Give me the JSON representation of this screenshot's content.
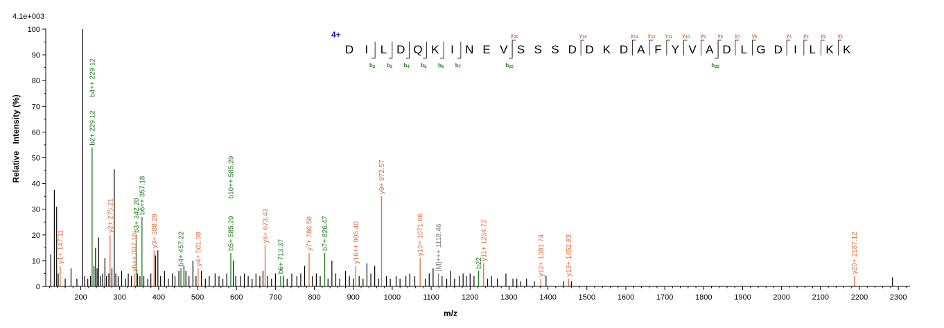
{
  "chart_data": {
    "type": "bar",
    "title": "",
    "scale_label": "4.1e+003",
    "xlabel": "m/z",
    "ylabel": "Relative   Intensity (%)",
    "xlim": [
      110,
      2330
    ],
    "ylim": [
      0,
      100
    ],
    "xticks": [
      200,
      300,
      400,
      500,
      600,
      700,
      800,
      900,
      1000,
      1100,
      1200,
      1300,
      1400,
      1500,
      1600,
      1700,
      1800,
      1900,
      2000,
      2100,
      2200,
      2300
    ],
    "yticks": [
      0,
      10,
      20,
      30,
      40,
      50,
      60,
      70,
      80,
      90,
      100
    ],
    "colors": {
      "y_ion": "#e06c3c",
      "b_ion": "#1f7a1f",
      "other": "#000000",
      "charge": "#1a1ab8",
      "precursor": "#7a7a7a"
    },
    "annotated_peaks": [
      {
        "mz": 147.11,
        "intensity": 8,
        "label": "y1+ 147.11",
        "ion": "y"
      },
      {
        "mz": 229.12,
        "intensity": 54,
        "label": "b2+ 229.12",
        "ion": "b"
      },
      {
        "mz": 229.12,
        "intensity": 54,
        "label": "b4++ 229.12",
        "ion": "b",
        "stack": 1
      },
      {
        "mz": 275.21,
        "intensity": 20,
        "label": "y2+ 275.21",
        "ion": "y"
      },
      {
        "mz": 337.16,
        "intensity": 5,
        "label": "y6++ 337.16",
        "ion": "y"
      },
      {
        "mz": 342.2,
        "intensity": 20,
        "label": "b3+ 342.20",
        "ion": "b"
      },
      {
        "mz": 357.18,
        "intensity": 27,
        "label": "b6++ 357.18",
        "ion": "b"
      },
      {
        "mz": 388.29,
        "intensity": 14,
        "label": "y3+ 388.29",
        "ion": "y"
      },
      {
        "mz": 457.22,
        "intensity": 7,
        "label": "b4+ 457.22",
        "ion": "b"
      },
      {
        "mz": 501.38,
        "intensity": 7,
        "label": "y4+ 501.38",
        "ion": "y"
      },
      {
        "mz": 585.29,
        "intensity": 13,
        "label": "b5+ 585.29",
        "ion": "b"
      },
      {
        "mz": 585.29,
        "intensity": 13,
        "label": "b10++ 585.29",
        "ion": "b",
        "stack": 1
      },
      {
        "mz": 673.43,
        "intensity": 16,
        "label": "y6+ 673.43",
        "ion": "y"
      },
      {
        "mz": 713.37,
        "intensity": 4,
        "label": "b6+ 713.37",
        "ion": "b"
      },
      {
        "mz": 786.5,
        "intensity": 13,
        "label": "y7+ 786.50",
        "ion": "y"
      },
      {
        "mz": 826.47,
        "intensity": 13,
        "label": "b7+ 826.47",
        "ion": "b"
      },
      {
        "mz": 906.4,
        "intensity": 8,
        "label": "y16++ 906.40",
        "ion": "y"
      },
      {
        "mz": 972.57,
        "intensity": 35,
        "label": "y9+ 972.57",
        "ion": "y"
      },
      {
        "mz": 1071.66,
        "intensity": 11,
        "label": "y10+ 1071.66",
        "ion": "y"
      },
      {
        "mz": 1118.46,
        "intensity": 5,
        "label": "[M]+++ 1118.46",
        "ion": "precursor"
      },
      {
        "mz": 1221.6,
        "intensity": 6,
        "label": "b22",
        "ion": "b"
      },
      {
        "mz": 1234.72,
        "intensity": 9,
        "label": "y11+ 1234.72",
        "ion": "y"
      },
      {
        "mz": 1381.74,
        "intensity": 3,
        "label": "y12+ 1381.74",
        "ion": "y"
      },
      {
        "mz": 1452.83,
        "intensity": 3,
        "label": "y13+ 1452.83",
        "ion": "y"
      },
      {
        "mz": 2187.12,
        "intensity": 4,
        "label": "y20+ 2187.12",
        "ion": "y"
      }
    ],
    "other_peaks": [
      [
        123,
        12.5
      ],
      [
        132,
        37.5
      ],
      [
        138,
        31
      ],
      [
        142,
        5
      ],
      [
        160,
        3
      ],
      [
        175,
        7
      ],
      [
        190,
        3
      ],
      [
        205,
        100
      ],
      [
        210,
        4
      ],
      [
        218,
        3
      ],
      [
        225,
        4
      ],
      [
        234,
        8
      ],
      [
        238,
        15
      ],
      [
        242,
        7
      ],
      [
        246,
        19
      ],
      [
        250,
        4
      ],
      [
        256,
        5
      ],
      [
        262,
        11
      ],
      [
        266,
        4
      ],
      [
        272,
        5
      ],
      [
        280,
        7
      ],
      [
        286,
        45.5
      ],
      [
        290,
        5
      ],
      [
        296,
        4
      ],
      [
        305,
        6
      ],
      [
        315,
        3
      ],
      [
        322,
        5
      ],
      [
        330,
        4
      ],
      [
        346,
        5
      ],
      [
        352,
        4
      ],
      [
        362,
        4
      ],
      [
        372,
        3
      ],
      [
        380,
        5
      ],
      [
        392,
        12
      ],
      [
        398,
        14
      ],
      [
        405,
        4
      ],
      [
        415,
        6
      ],
      [
        425,
        3
      ],
      [
        435,
        5
      ],
      [
        442,
        4
      ],
      [
        452,
        6
      ],
      [
        465,
        8
      ],
      [
        470,
        6
      ],
      [
        478,
        4
      ],
      [
        488,
        10
      ],
      [
        496,
        4
      ],
      [
        510,
        6
      ],
      [
        520,
        3
      ],
      [
        530,
        4
      ],
      [
        545,
        5
      ],
      [
        555,
        4
      ],
      [
        565,
        3
      ],
      [
        575,
        5
      ],
      [
        592,
        10
      ],
      [
        598,
        4
      ],
      [
        610,
        4
      ],
      [
        620,
        5
      ],
      [
        630,
        4
      ],
      [
        640,
        3
      ],
      [
        650,
        5
      ],
      [
        660,
        4
      ],
      [
        668,
        6
      ],
      [
        680,
        4
      ],
      [
        690,
        3
      ],
      [
        700,
        5
      ],
      [
        720,
        4
      ],
      [
        730,
        3
      ],
      [
        742,
        5
      ],
      [
        755,
        4
      ],
      [
        765,
        5
      ],
      [
        775,
        8
      ],
      [
        795,
        4
      ],
      [
        805,
        5
      ],
      [
        815,
        4
      ],
      [
        835,
        3
      ],
      [
        845,
        10
      ],
      [
        855,
        5
      ],
      [
        865,
        3
      ],
      [
        880,
        6
      ],
      [
        890,
        4
      ],
      [
        900,
        3
      ],
      [
        915,
        4
      ],
      [
        925,
        3
      ],
      [
        935,
        9
      ],
      [
        945,
        5
      ],
      [
        955,
        8
      ],
      [
        965,
        3
      ],
      [
        985,
        4
      ],
      [
        995,
        3
      ],
      [
        1010,
        4
      ],
      [
        1020,
        3
      ],
      [
        1035,
        4
      ],
      [
        1045,
        5
      ],
      [
        1058,
        4
      ],
      [
        1085,
        3
      ],
      [
        1095,
        5
      ],
      [
        1105,
        7
      ],
      [
        1128,
        4
      ],
      [
        1140,
        3
      ],
      [
        1150,
        6
      ],
      [
        1160,
        3
      ],
      [
        1172,
        4
      ],
      [
        1182,
        5
      ],
      [
        1190,
        4
      ],
      [
        1200,
        5
      ],
      [
        1210,
        4
      ],
      [
        1245,
        3
      ],
      [
        1255,
        4
      ],
      [
        1270,
        3
      ],
      [
        1292,
        5
      ],
      [
        1310,
        3
      ],
      [
        1320,
        3
      ],
      [
        1330,
        2
      ],
      [
        1345,
        3
      ],
      [
        1365,
        2
      ],
      [
        1395,
        4
      ],
      [
        1440,
        2
      ],
      [
        1460,
        2
      ],
      [
        2285,
        3.5
      ]
    ]
  },
  "sequence": {
    "charge": "4+",
    "residues": [
      "D",
      "I",
      "L",
      "D",
      "Q",
      "K",
      "I",
      "N",
      "E",
      "V",
      "S",
      "S",
      "S",
      "D",
      "D",
      "K",
      "D",
      "A",
      "F",
      "Y",
      "V",
      "A",
      "D",
      "L",
      "G",
      "D",
      "I",
      "L",
      "K",
      "K"
    ],
    "y_ions": [
      {
        "after": 10,
        "label": "y",
        "index": "20"
      },
      {
        "after": 14,
        "label": "y",
        "index": "16"
      },
      {
        "after": 17,
        "label": "y",
        "index": "13"
      },
      {
        "after": 18,
        "label": "y",
        "index": "12"
      },
      {
        "after": 19,
        "label": "y",
        "index": "11"
      },
      {
        "after": 20,
        "label": "y",
        "index": "10"
      },
      {
        "after": 21,
        "label": "y",
        "index": "9"
      },
      {
        "after": 22,
        "label": "y",
        "index": "8"
      },
      {
        "after": 23,
        "label": "y",
        "index": "7"
      },
      {
        "after": 24,
        "label": "y",
        "index": "6"
      },
      {
        "after": 26,
        "label": "y",
        "index": "4"
      },
      {
        "after": 27,
        "label": "y",
        "index": "3"
      },
      {
        "after": 28,
        "label": "y",
        "index": "2"
      },
      {
        "after": 29,
        "label": "y",
        "index": "1"
      }
    ],
    "b_ions": [
      {
        "after": 2,
        "label": "b",
        "index": "2"
      },
      {
        "after": 3,
        "label": "b",
        "index": "3"
      },
      {
        "after": 4,
        "label": "b",
        "index": "4"
      },
      {
        "after": 5,
        "label": "b",
        "index": "5"
      },
      {
        "after": 6,
        "label": "b",
        "index": "6"
      },
      {
        "after": 7,
        "label": "b",
        "index": "7"
      },
      {
        "after": 10,
        "label": "b",
        "index": "10"
      },
      {
        "after": 22,
        "label": "b",
        "index": "22"
      }
    ]
  }
}
